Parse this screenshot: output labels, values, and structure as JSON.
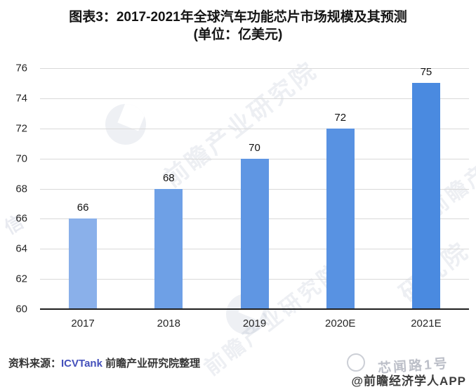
{
  "title": {
    "line1": "图表3：2017-2021年全球汽车功能芯片市场规模及其预测",
    "line2": "(单位：亿美元)"
  },
  "chart_data": {
    "type": "bar",
    "title": "2017-2021年全球汽车功能芯片市场规模及其预测",
    "unit": "亿美元",
    "categories": [
      "2017",
      "2018",
      "2019",
      "2020E",
      "2021E"
    ],
    "values": [
      66,
      68,
      70,
      72,
      75
    ],
    "bar_colors": [
      "#8ab0ea",
      "#6ea0e6",
      "#5f96e3",
      "#5892e2",
      "#4a8ae0"
    ],
    "ylim": [
      60,
      76
    ],
    "ytick_step": 2,
    "grid": true,
    "legend": "none",
    "xlabel": "",
    "ylabel": ""
  },
  "source": {
    "prefix": "资料来源：",
    "org": "ICVTank",
    "rest": " 前瞻产业研究院整理"
  },
  "credit": {
    "text": "@前瞻经济学人APP"
  },
  "watermarks": {
    "brand": "前瞻产业研究院",
    "suffix": "研究院",
    "overlay": "芯闻路1号",
    "edge": "信"
  }
}
